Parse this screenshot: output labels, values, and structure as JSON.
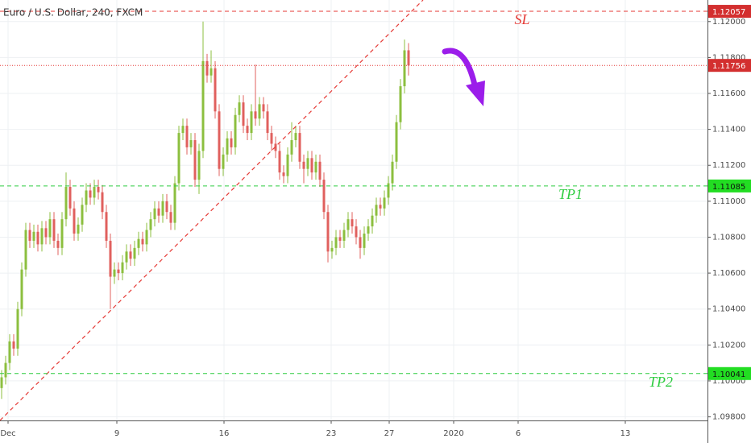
{
  "chart_data": {
    "type": "candlestick",
    "title": "Euro / U.S. Dollar, 240, FXCM",
    "up_color": "#8cbf3f",
    "down_color": "#e0605e",
    "open": [
      1.0996,
      1.1002,
      1.101,
      1.1022,
      1.1018,
      1.104,
      1.1062,
      1.1084,
      1.1078,
      1.1083,
      1.1076,
      1.1085,
      1.108,
      1.109,
      1.1078,
      1.1074,
      1.109,
      1.1108,
      1.1096,
      1.1082,
      1.1087,
      1.1098,
      1.1106,
      1.1102,
      1.1108,
      1.1105,
      1.1094,
      1.1078,
      1.1058,
      1.1062,
      1.106,
      1.1066,
      1.1072,
      1.1068,
      1.1074,
      1.1079,
      1.1076,
      1.1084,
      1.109,
      1.1096,
      1.1092,
      1.11,
      1.1094,
      1.1088,
      1.111,
      1.1138,
      1.1142,
      1.113,
      1.1134,
      1.1112,
      1.1128,
      1.1178,
      1.117,
      1.1174,
      1.115,
      1.1118,
      1.1126,
      1.1135,
      1.113,
      1.1148,
      1.1155,
      1.1142,
      1.1138,
      1.115,
      1.1146,
      1.1154,
      1.115,
      1.1138,
      1.1132,
      1.1128,
      1.1116,
      1.1114,
      1.1126,
      1.1134,
      1.1138,
      1.1122,
      1.1118,
      1.1124,
      1.1116,
      1.1122,
      1.1112,
      1.1094,
      1.1072,
      1.1074,
      1.108,
      1.1078,
      1.1084,
      1.109,
      1.1086,
      1.108,
      1.1074,
      1.1082,
      1.1086,
      1.1092,
      1.1098,
      1.1096,
      1.1102,
      1.111,
      1.1122,
      1.1144,
      1.1164,
      1.1184
    ],
    "high": [
      1.1006,
      1.1014,
      1.1026,
      1.1026,
      1.1044,
      1.1066,
      1.1088,
      1.1088,
      1.1087,
      1.1087,
      1.1089,
      1.1089,
      1.1094,
      1.1094,
      1.1082,
      1.1094,
      1.1116,
      1.1112,
      1.11,
      1.1091,
      1.1102,
      1.111,
      1.111,
      1.1112,
      1.1112,
      1.1109,
      1.1098,
      1.1082,
      1.1066,
      1.1066,
      1.107,
      1.1076,
      1.1076,
      1.1078,
      1.1083,
      1.1083,
      1.1088,
      1.1094,
      1.11,
      1.11,
      1.1104,
      1.1104,
      1.1098,
      1.1114,
      1.1142,
      1.1146,
      1.1146,
      1.1138,
      1.1138,
      1.1132,
      1.12,
      1.1182,
      1.1184,
      1.1178,
      1.1154,
      1.113,
      1.1139,
      1.1139,
      1.1152,
      1.1159,
      1.1159,
      1.1146,
      1.1154,
      1.1176,
      1.1158,
      1.1158,
      1.1154,
      1.1142,
      1.1136,
      1.1132,
      1.112,
      1.113,
      1.1144,
      1.1142,
      1.1142,
      1.1126,
      1.1128,
      1.1128,
      1.1126,
      1.1126,
      1.1116,
      1.1098,
      1.1078,
      1.1084,
      1.1084,
      1.1088,
      1.1094,
      1.1094,
      1.109,
      1.1084,
      1.1086,
      1.109,
      1.1096,
      1.1102,
      1.1102,
      1.1106,
      1.1114,
      1.1126,
      1.1148,
      1.1168,
      1.119,
      1.1188
    ],
    "low": [
      1.099,
      1.0998,
      1.1006,
      1.1014,
      1.1014,
      1.1036,
      1.1058,
      1.1074,
      1.1074,
      1.1072,
      1.1072,
      1.1076,
      1.1076,
      1.1074,
      1.107,
      1.107,
      1.1086,
      1.1092,
      1.1078,
      1.1078,
      1.1083,
      1.1094,
      1.1098,
      1.1098,
      1.1101,
      1.109,
      1.1074,
      1.104,
      1.1054,
      1.1056,
      1.1056,
      1.1062,
      1.1064,
      1.1064,
      1.107,
      1.1072,
      1.1072,
      1.108,
      1.1086,
      1.1088,
      1.1088,
      1.109,
      1.1084,
      1.1084,
      1.1106,
      1.1134,
      1.1126,
      1.1126,
      1.1108,
      1.1104,
      1.1124,
      1.1166,
      1.1166,
      1.1146,
      1.1114,
      1.1114,
      1.1122,
      1.1126,
      1.1126,
      1.1144,
      1.1138,
      1.1134,
      1.1134,
      1.1142,
      1.1142,
      1.1146,
      1.1134,
      1.1128,
      1.1124,
      1.1112,
      1.111,
      1.111,
      1.1122,
      1.113,
      1.1118,
      1.111,
      1.1114,
      1.1112,
      1.1112,
      1.1108,
      1.109,
      1.1066,
      1.1068,
      1.107,
      1.1074,
      1.1074,
      1.108,
      1.1082,
      1.1076,
      1.1068,
      1.107,
      1.1078,
      1.1082,
      1.1088,
      1.1092,
      1.1092,
      1.1098,
      1.1106,
      1.1118,
      1.114,
      1.116,
      1.117
    ],
    "close": [
      1.1002,
      1.101,
      1.1022,
      1.1018,
      1.104,
      1.1062,
      1.1084,
      1.1078,
      1.1083,
      1.1076,
      1.1085,
      1.108,
      1.109,
      1.1078,
      1.1074,
      1.109,
      1.1108,
      1.1096,
      1.1082,
      1.1087,
      1.1098,
      1.1106,
      1.1102,
      1.1108,
      1.1105,
      1.1094,
      1.1078,
      1.1058,
      1.1062,
      1.106,
      1.1066,
      1.1072,
      1.1068,
      1.1074,
      1.1079,
      1.1076,
      1.1084,
      1.109,
      1.1096,
      1.1092,
      1.11,
      1.1094,
      1.1088,
      1.111,
      1.1138,
      1.1142,
      1.113,
      1.1134,
      1.1112,
      1.1128,
      1.1178,
      1.117,
      1.1174,
      1.115,
      1.1118,
      1.1126,
      1.1135,
      1.113,
      1.1148,
      1.1155,
      1.1142,
      1.1138,
      1.115,
      1.1146,
      1.1154,
      1.115,
      1.1138,
      1.1132,
      1.1128,
      1.1116,
      1.1114,
      1.1126,
      1.1134,
      1.1138,
      1.1122,
      1.1118,
      1.1124,
      1.1116,
      1.1122,
      1.1112,
      1.1094,
      1.1072,
      1.1074,
      1.108,
      1.1078,
      1.1084,
      1.109,
      1.1086,
      1.108,
      1.1074,
      1.1082,
      1.1086,
      1.1092,
      1.1098,
      1.1096,
      1.1102,
      1.111,
      1.1122,
      1.1144,
      1.1164,
      1.1184,
      1.11756
    ],
    "xlim": [
      -0.4,
      175.2
    ],
    "xticks": [
      {
        "value": 1.6,
        "label": "Dec"
      },
      {
        "value": 28.6,
        "label": "9"
      },
      {
        "value": 55.2,
        "label": "16"
      },
      {
        "value": 81.8,
        "label": "23"
      },
      {
        "value": 96.2,
        "label": "27"
      },
      {
        "value": 112.2,
        "label": "2020"
      },
      {
        "value": 128.2,
        "label": "6"
      },
      {
        "value": 154.8,
        "label": "13"
      }
    ],
    "ylim": [
      1.0978,
      1.1212
    ],
    "yticks": [
      {
        "value": 1.098,
        "label": "1.09800"
      },
      {
        "value": 1.1,
        "label": "1.10000"
      },
      {
        "value": 1.102,
        "label": "1.10200"
      },
      {
        "value": 1.104,
        "label": "1.10400"
      },
      {
        "value": 1.106,
        "label": "1.10600"
      },
      {
        "value": 1.108,
        "label": "1.10800"
      },
      {
        "value": 1.11,
        "label": "1.11000"
      },
      {
        "value": 1.112,
        "label": "1.11200"
      },
      {
        "value": 1.114,
        "label": "1.11400"
      },
      {
        "value": 1.116,
        "label": "1.11600"
      },
      {
        "value": 1.118,
        "label": "1.11800"
      },
      {
        "value": 1.12,
        "label": "1.12000"
      }
    ],
    "grid": true,
    "levels": [
      {
        "name": "SL",
        "value": 1.12057,
        "color": "#e53935",
        "style": "dashed"
      },
      {
        "value": 1.11756,
        "color": "#e53935",
        "style": "dotted"
      },
      {
        "name": "TP1",
        "value": 1.11085,
        "color": "#2ecc40",
        "style": "dashed"
      },
      {
        "name": "TP2",
        "value": 1.10041,
        "color": "#2ecc40",
        "style": "dashed"
      }
    ],
    "trend_line": {
      "x": [
        -0.4,
        104.6
      ],
      "y": [
        1.0978,
        1.1212
      ],
      "color": "#e53935"
    }
  }
}
